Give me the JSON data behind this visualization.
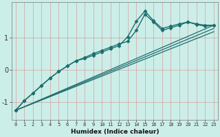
{
  "bg_color": "#cceee8",
  "grid_color_v": "#d4a0a0",
  "grid_color_h": "#d4a0a0",
  "line_color": "#1a6e6e",
  "xlabel": "Humidex (Indice chaleur)",
  "xlim": [
    -0.5,
    23.5
  ],
  "ylim": [
    -1.55,
    2.1
  ],
  "yticks": [
    -1,
    0,
    1
  ],
  "xticks": [
    0,
    1,
    2,
    3,
    4,
    5,
    6,
    7,
    8,
    9,
    10,
    11,
    12,
    13,
    14,
    15,
    16,
    17,
    18,
    19,
    20,
    21,
    22,
    23
  ],
  "series": [
    {
      "x": [
        0,
        1,
        2,
        3,
        4,
        5,
        6,
        7,
        8,
        9,
        10,
        11,
        12,
        13,
        14,
        15,
        16,
        17,
        18,
        19,
        20,
        21,
        22,
        23
      ],
      "y": [
        -1.25,
        -0.95,
        -0.72,
        -0.48,
        -0.25,
        -0.05,
        0.12,
        0.28,
        0.38,
        0.5,
        0.6,
        0.7,
        0.8,
        0.88,
        1.22,
        1.72,
        1.48,
        1.22,
        1.3,
        1.38,
        1.48,
        1.42,
        1.38,
        1.38
      ],
      "marker": "D",
      "markersize": 2.5,
      "linewidth": 1.0,
      "linestyle": "-"
    },
    {
      "x": [
        0,
        1,
        2,
        3,
        4,
        5,
        6,
        7,
        8,
        9,
        10,
        11,
        12,
        13,
        14,
        15,
        16,
        17,
        18,
        19,
        20,
        21,
        22,
        23
      ],
      "y": [
        -1.25,
        -0.95,
        -0.72,
        -0.48,
        -0.25,
        -0.05,
        0.12,
        0.28,
        0.35,
        0.45,
        0.55,
        0.65,
        0.75,
        1.02,
        1.5,
        1.82,
        1.52,
        1.28,
        1.35,
        1.42,
        1.48,
        1.4,
        1.35,
        1.38
      ],
      "marker": "D",
      "markersize": 2.5,
      "linewidth": 1.0,
      "linestyle": "-"
    },
    {
      "x": [
        0,
        23
      ],
      "y": [
        -1.25,
        1.38
      ],
      "marker": null,
      "markersize": 0,
      "linewidth": 0.9,
      "linestyle": "-"
    },
    {
      "x": [
        0,
        23
      ],
      "y": [
        -1.25,
        1.28
      ],
      "marker": null,
      "markersize": 0,
      "linewidth": 0.9,
      "linestyle": "-"
    },
    {
      "x": [
        0,
        23
      ],
      "y": [
        -1.25,
        1.18
      ],
      "marker": null,
      "markersize": 0,
      "linewidth": 0.9,
      "linestyle": "-"
    }
  ]
}
